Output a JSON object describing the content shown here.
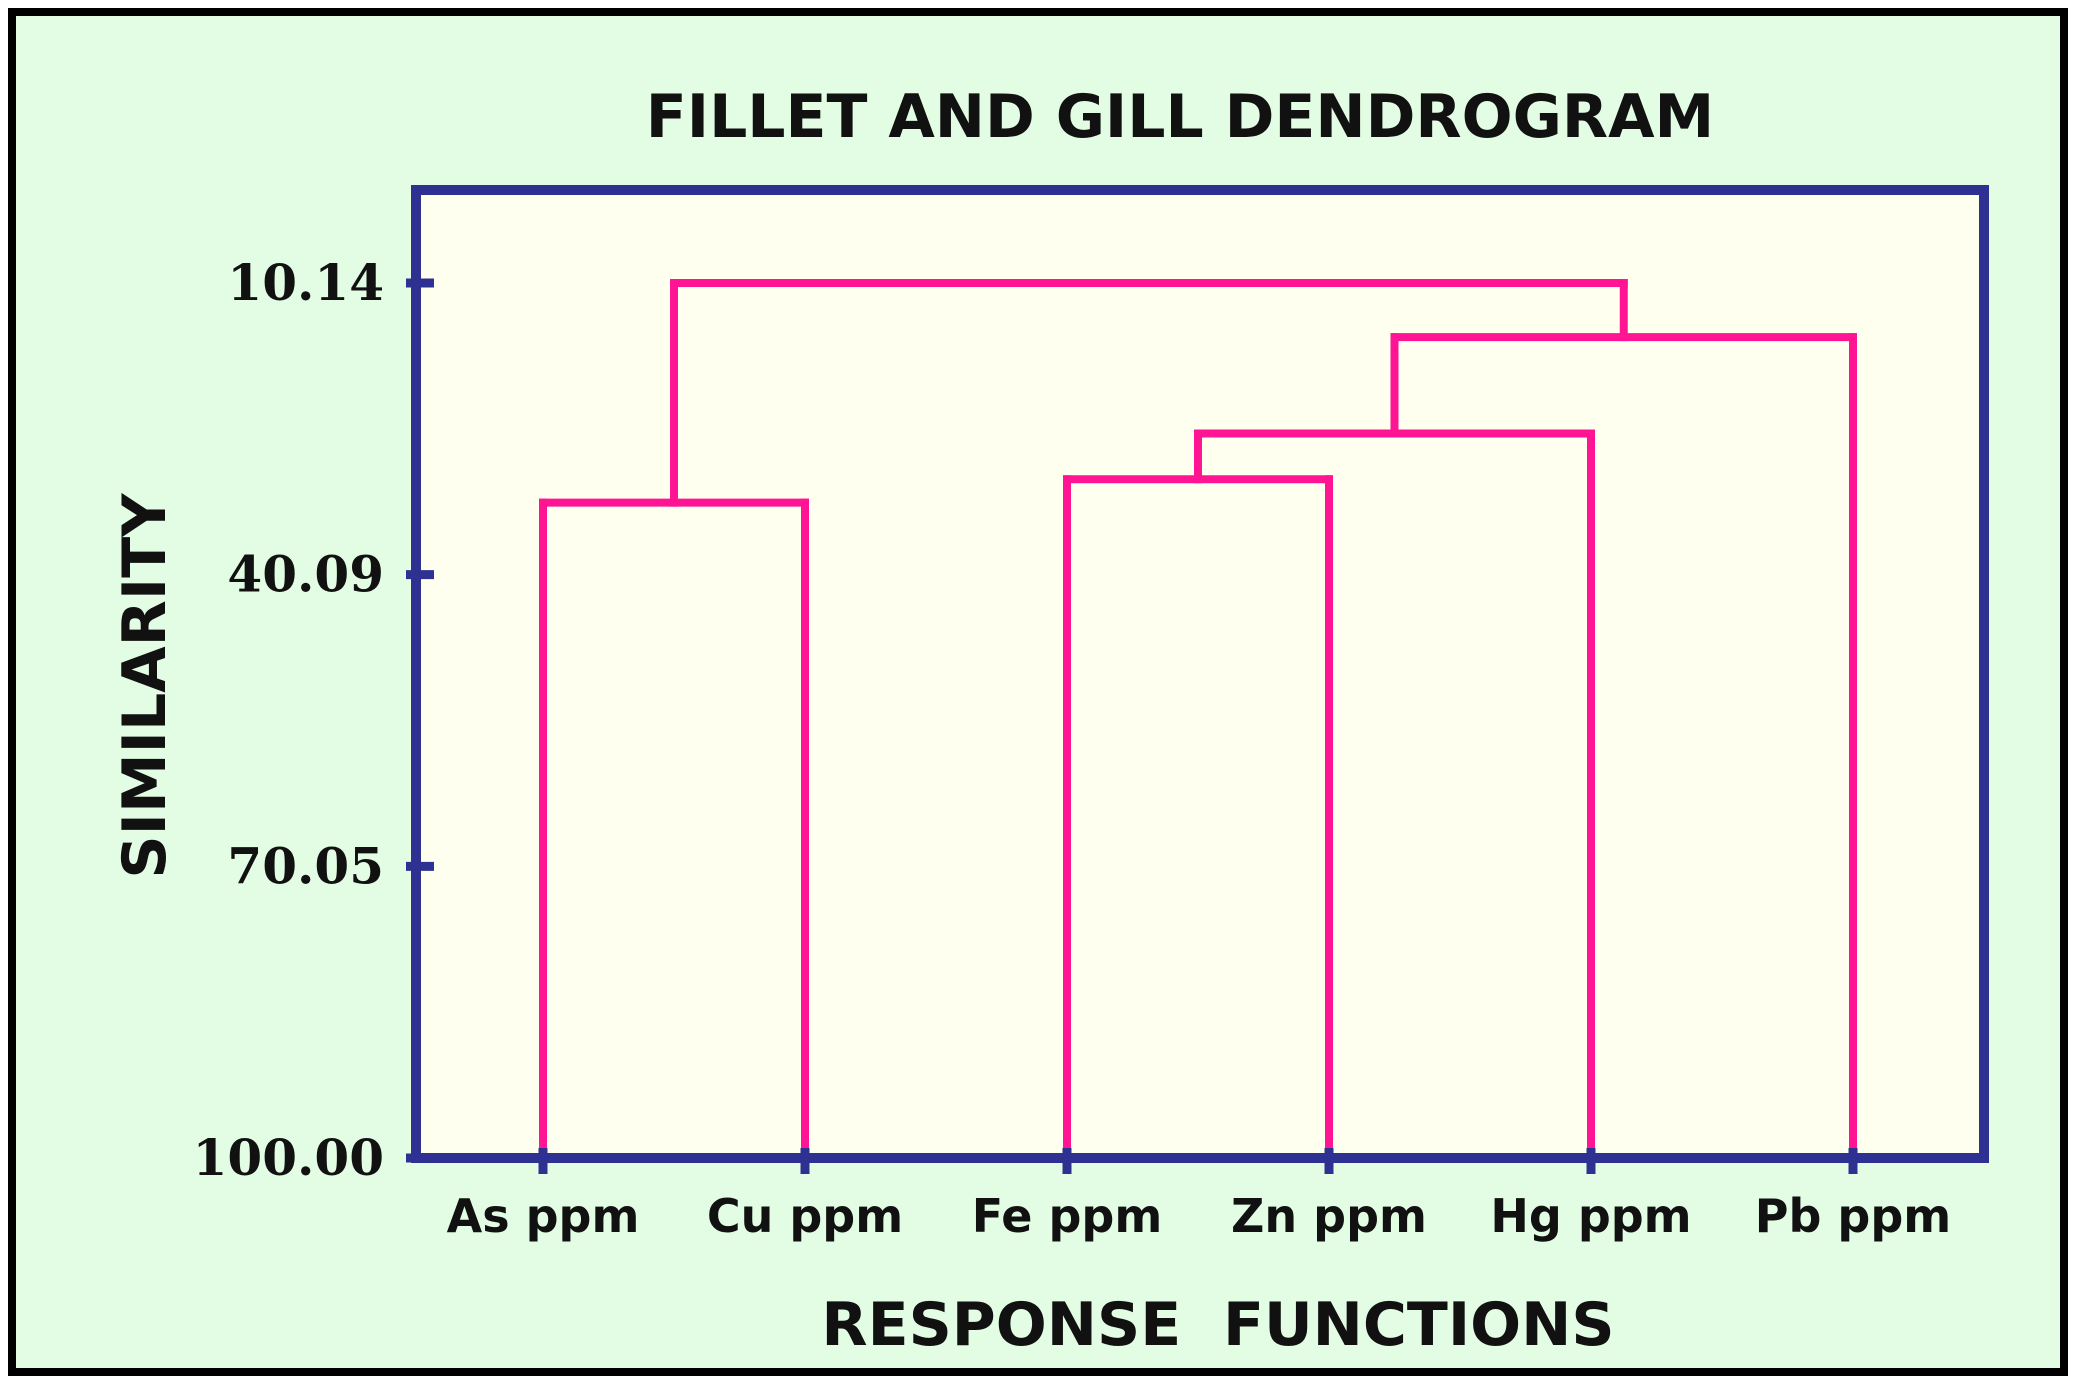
{
  "chart_data": {
    "type": "dendrogram",
    "title": "FILLET AND GILL DENDROGRAM",
    "xlabel": "RESPONSE  FUNCTIONS",
    "ylabel": "SIMILARITY",
    "y_ticks": [
      "10.14",
      "40.09",
      "70.05",
      "100.00"
    ],
    "y_tick_values": [
      10.14,
      40.09,
      70.05,
      100.0
    ],
    "ylim": [
      100.0,
      0.0
    ],
    "leaves": [
      "As ppm",
      "Cu ppm",
      "Fe ppm",
      "Zn ppm",
      "Hg ppm",
      "Pb ppm"
    ],
    "merges": [
      {
        "left": 2,
        "right": 3,
        "similarity": 30.3
      },
      {
        "left": 0,
        "right": 1,
        "similarity": 32.7
      },
      {
        "left": 6,
        "right": 4,
        "similarity": 25.6
      },
      {
        "left": 8,
        "right": 5,
        "similarity": 15.7
      },
      {
        "left": 7,
        "right": 9,
        "similarity": 10.14
      }
    ]
  },
  "colors": {
    "background": "#e2fde3",
    "plot_area": "#fffff0",
    "axis": "#2e3192",
    "branches": "#ff1493",
    "text": "#111111"
  }
}
